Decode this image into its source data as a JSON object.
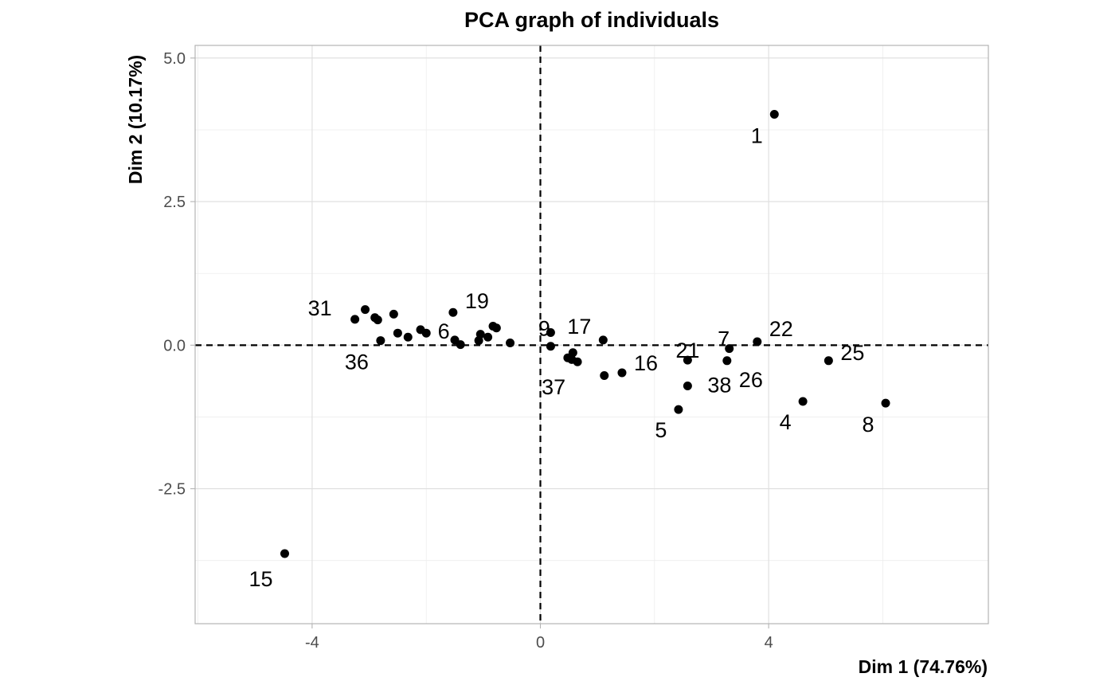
{
  "chart_data": {
    "type": "scatter",
    "title": "PCA graph of individuals",
    "xlabel": "Dim 1 (74.76%)",
    "ylabel": "Dim 2 (10.17%)",
    "xlim": [
      -6.05,
      7.85
    ],
    "ylim": [
      -4.85,
      5.22
    ],
    "x_ticks": [
      -4,
      0,
      4
    ],
    "x_tick_labels": [
      "-4",
      "0",
      "4"
    ],
    "y_ticks": [
      -2.5,
      0,
      2.5,
      5
    ],
    "y_tick_labels": [
      "-2.5",
      "0.0",
      "2.5",
      "5.0"
    ],
    "grid": true,
    "reference_lines": {
      "x": 0,
      "y": 0,
      "style": "dashed"
    },
    "point_color": "#000000",
    "points": [
      {
        "x": 4.1,
        "y": 4.02,
        "label": "1"
      },
      {
        "x": -4.48,
        "y": -3.63,
        "label": "15"
      },
      {
        "x": -3.25,
        "y": 0.45,
        "label": "31"
      },
      {
        "x": -3.07,
        "y": 0.62,
        "label": ""
      },
      {
        "x": -2.9,
        "y": 0.48,
        "label": ""
      },
      {
        "x": -2.85,
        "y": 0.44,
        "label": ""
      },
      {
        "x": -2.8,
        "y": 0.08,
        "label": "36"
      },
      {
        "x": -2.57,
        "y": 0.54,
        "label": ""
      },
      {
        "x": -2.5,
        "y": 0.21,
        "label": ""
      },
      {
        "x": -2.32,
        "y": 0.14,
        "label": ""
      },
      {
        "x": -2.1,
        "y": 0.27,
        "label": ""
      },
      {
        "x": -2.0,
        "y": 0.21,
        "label": "6"
      },
      {
        "x": -1.53,
        "y": 0.57,
        "label": "19"
      },
      {
        "x": -1.5,
        "y": 0.09,
        "label": ""
      },
      {
        "x": -1.4,
        "y": 0.01,
        "label": ""
      },
      {
        "x": -1.05,
        "y": 0.19,
        "label": ""
      },
      {
        "x": -1.08,
        "y": 0.08,
        "label": ""
      },
      {
        "x": -0.92,
        "y": 0.14,
        "label": ""
      },
      {
        "x": -0.83,
        "y": 0.33,
        "label": ""
      },
      {
        "x": -0.77,
        "y": 0.3,
        "label": ""
      },
      {
        "x": -0.53,
        "y": 0.04,
        "label": ""
      },
      {
        "x": 0.18,
        "y": 0.22,
        "label": "9"
      },
      {
        "x": 0.18,
        "y": -0.02,
        "label": ""
      },
      {
        "x": 0.48,
        "y": -0.22,
        "label": ""
      },
      {
        "x": 0.55,
        "y": -0.25,
        "label": ""
      },
      {
        "x": 0.57,
        "y": -0.13,
        "label": ""
      },
      {
        "x": 0.65,
        "y": -0.29,
        "label": "37"
      },
      {
        "x": 1.1,
        "y": 0.09,
        "label": "17"
      },
      {
        "x": 1.12,
        "y": -0.53,
        "label": ""
      },
      {
        "x": 1.43,
        "y": -0.48,
        "label": "16"
      },
      {
        "x": 2.42,
        "y": -1.12,
        "label": "5"
      },
      {
        "x": 2.58,
        "y": -0.71,
        "label": "38"
      },
      {
        "x": 2.58,
        "y": -0.26,
        "label": "21"
      },
      {
        "x": 3.27,
        "y": -0.27,
        "label": "26"
      },
      {
        "x": 3.31,
        "y": -0.06,
        "label": "7"
      },
      {
        "x": 3.8,
        "y": 0.06,
        "label": "22"
      },
      {
        "x": 4.6,
        "y": -0.98,
        "label": "4"
      },
      {
        "x": 5.05,
        "y": -0.27,
        "label": "25"
      },
      {
        "x": 6.05,
        "y": -1.01,
        "label": "8"
      }
    ]
  }
}
